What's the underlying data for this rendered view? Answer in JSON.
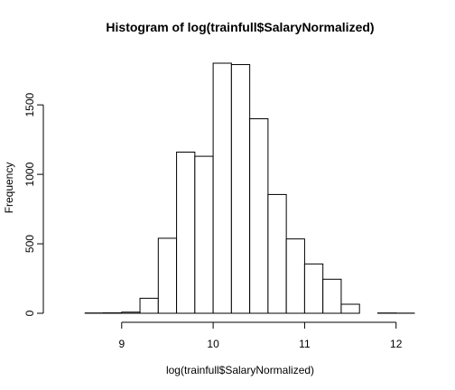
{
  "chart_data": {
    "type": "bar",
    "title": "Histogram of log(trainfull$SalaryNormalized)",
    "xlabel": "log(trainfull$SalaryNormalized)",
    "ylabel": "Frequency",
    "bins": [
      {
        "start": 8.4,
        "end": 8.6,
        "count": 0
      },
      {
        "start": 8.6,
        "end": 8.8,
        "count": 2
      },
      {
        "start": 8.8,
        "end": 9.0,
        "count": 3
      },
      {
        "start": 9.0,
        "end": 9.2,
        "count": 8
      },
      {
        "start": 9.2,
        "end": 9.4,
        "count": 108
      },
      {
        "start": 9.4,
        "end": 9.6,
        "count": 540
      },
      {
        "start": 9.6,
        "end": 9.8,
        "count": 1160
      },
      {
        "start": 9.8,
        "end": 10.0,
        "count": 1130
      },
      {
        "start": 10.0,
        "end": 10.2,
        "count": 1800
      },
      {
        "start": 10.2,
        "end": 10.4,
        "count": 1790
      },
      {
        "start": 10.4,
        "end": 10.6,
        "count": 1400
      },
      {
        "start": 10.6,
        "end": 10.8,
        "count": 855
      },
      {
        "start": 10.8,
        "end": 11.0,
        "count": 535
      },
      {
        "start": 11.0,
        "end": 11.2,
        "count": 355
      },
      {
        "start": 11.2,
        "end": 11.4,
        "count": 245
      },
      {
        "start": 11.4,
        "end": 11.6,
        "count": 65
      },
      {
        "start": 11.6,
        "end": 11.8,
        "count": 0
      },
      {
        "start": 11.8,
        "end": 12.0,
        "count": 2
      },
      {
        "start": 12.0,
        "end": 12.2,
        "count": 1
      }
    ],
    "x_ticks": [
      {
        "value": 9,
        "label": "9"
      },
      {
        "value": 10,
        "label": "10"
      },
      {
        "value": 11,
        "label": "11"
      },
      {
        "value": 12,
        "label": "12"
      }
    ],
    "y_ticks": [
      {
        "value": 0,
        "label": "0"
      },
      {
        "value": 500,
        "label": "500"
      },
      {
        "value": 1000,
        "label": "1000"
      },
      {
        "value": 1500,
        "label": "1500"
      }
    ],
    "xlim": [
      8.4,
      12.2
    ],
    "ylim": [
      0,
      1800
    ],
    "grid": false
  }
}
